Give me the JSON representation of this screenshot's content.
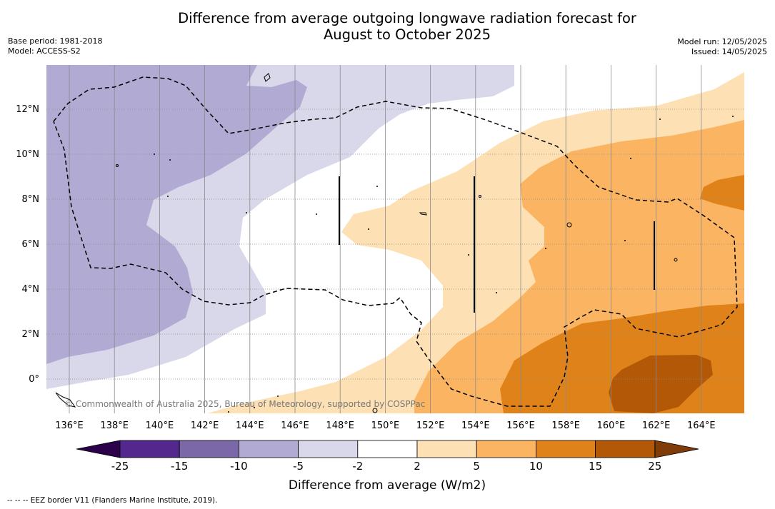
{
  "title_line1": "Difference from average outgoing longwave radiation forecast for",
  "title_line2": "August to October 2025",
  "meta_left": {
    "base_period": "Base period: 1981-2018",
    "model": "Model: ACCESS-S2"
  },
  "meta_right": {
    "model_run": "Model run: 12/05/2025",
    "issued": "Issued: 14/05/2025"
  },
  "map": {
    "lon_labels": [
      "136°E",
      "138°E",
      "140°E",
      "142°E",
      "144°E",
      "146°E",
      "148°E",
      "150°E",
      "152°E",
      "154°E",
      "156°E",
      "158°E",
      "160°E",
      "162°E",
      "164°E"
    ],
    "lat_labels": [
      "12°N",
      "10°N",
      "8°N",
      "6°N",
      "4°N",
      "2°N",
      "0°"
    ],
    "watermark": "© Commonwealth of Australia 2025, Bureau of Meteorology, supported by COSPPac",
    "grid": true,
    "line_style_eez": "dashed"
  },
  "colorbar": {
    "ticks": [
      "-25",
      "-15",
      "-10",
      "-5",
      "-2",
      "2",
      "5",
      "10",
      "15",
      "25"
    ],
    "colors": [
      "#54278f",
      "#7b68a8",
      "#b1aad3",
      "#d8d8ea",
      "#ffffff",
      "#fde0b4",
      "#fbb562",
      "#e0821a",
      "#b35806"
    ],
    "under_color": "#2d004b",
    "over_color": "#7f3b08",
    "label": "Difference from average (W/m2)"
  },
  "eez_note": "--  --  -- EEZ border V11 (Flanders Marine Institute, 2019)."
}
